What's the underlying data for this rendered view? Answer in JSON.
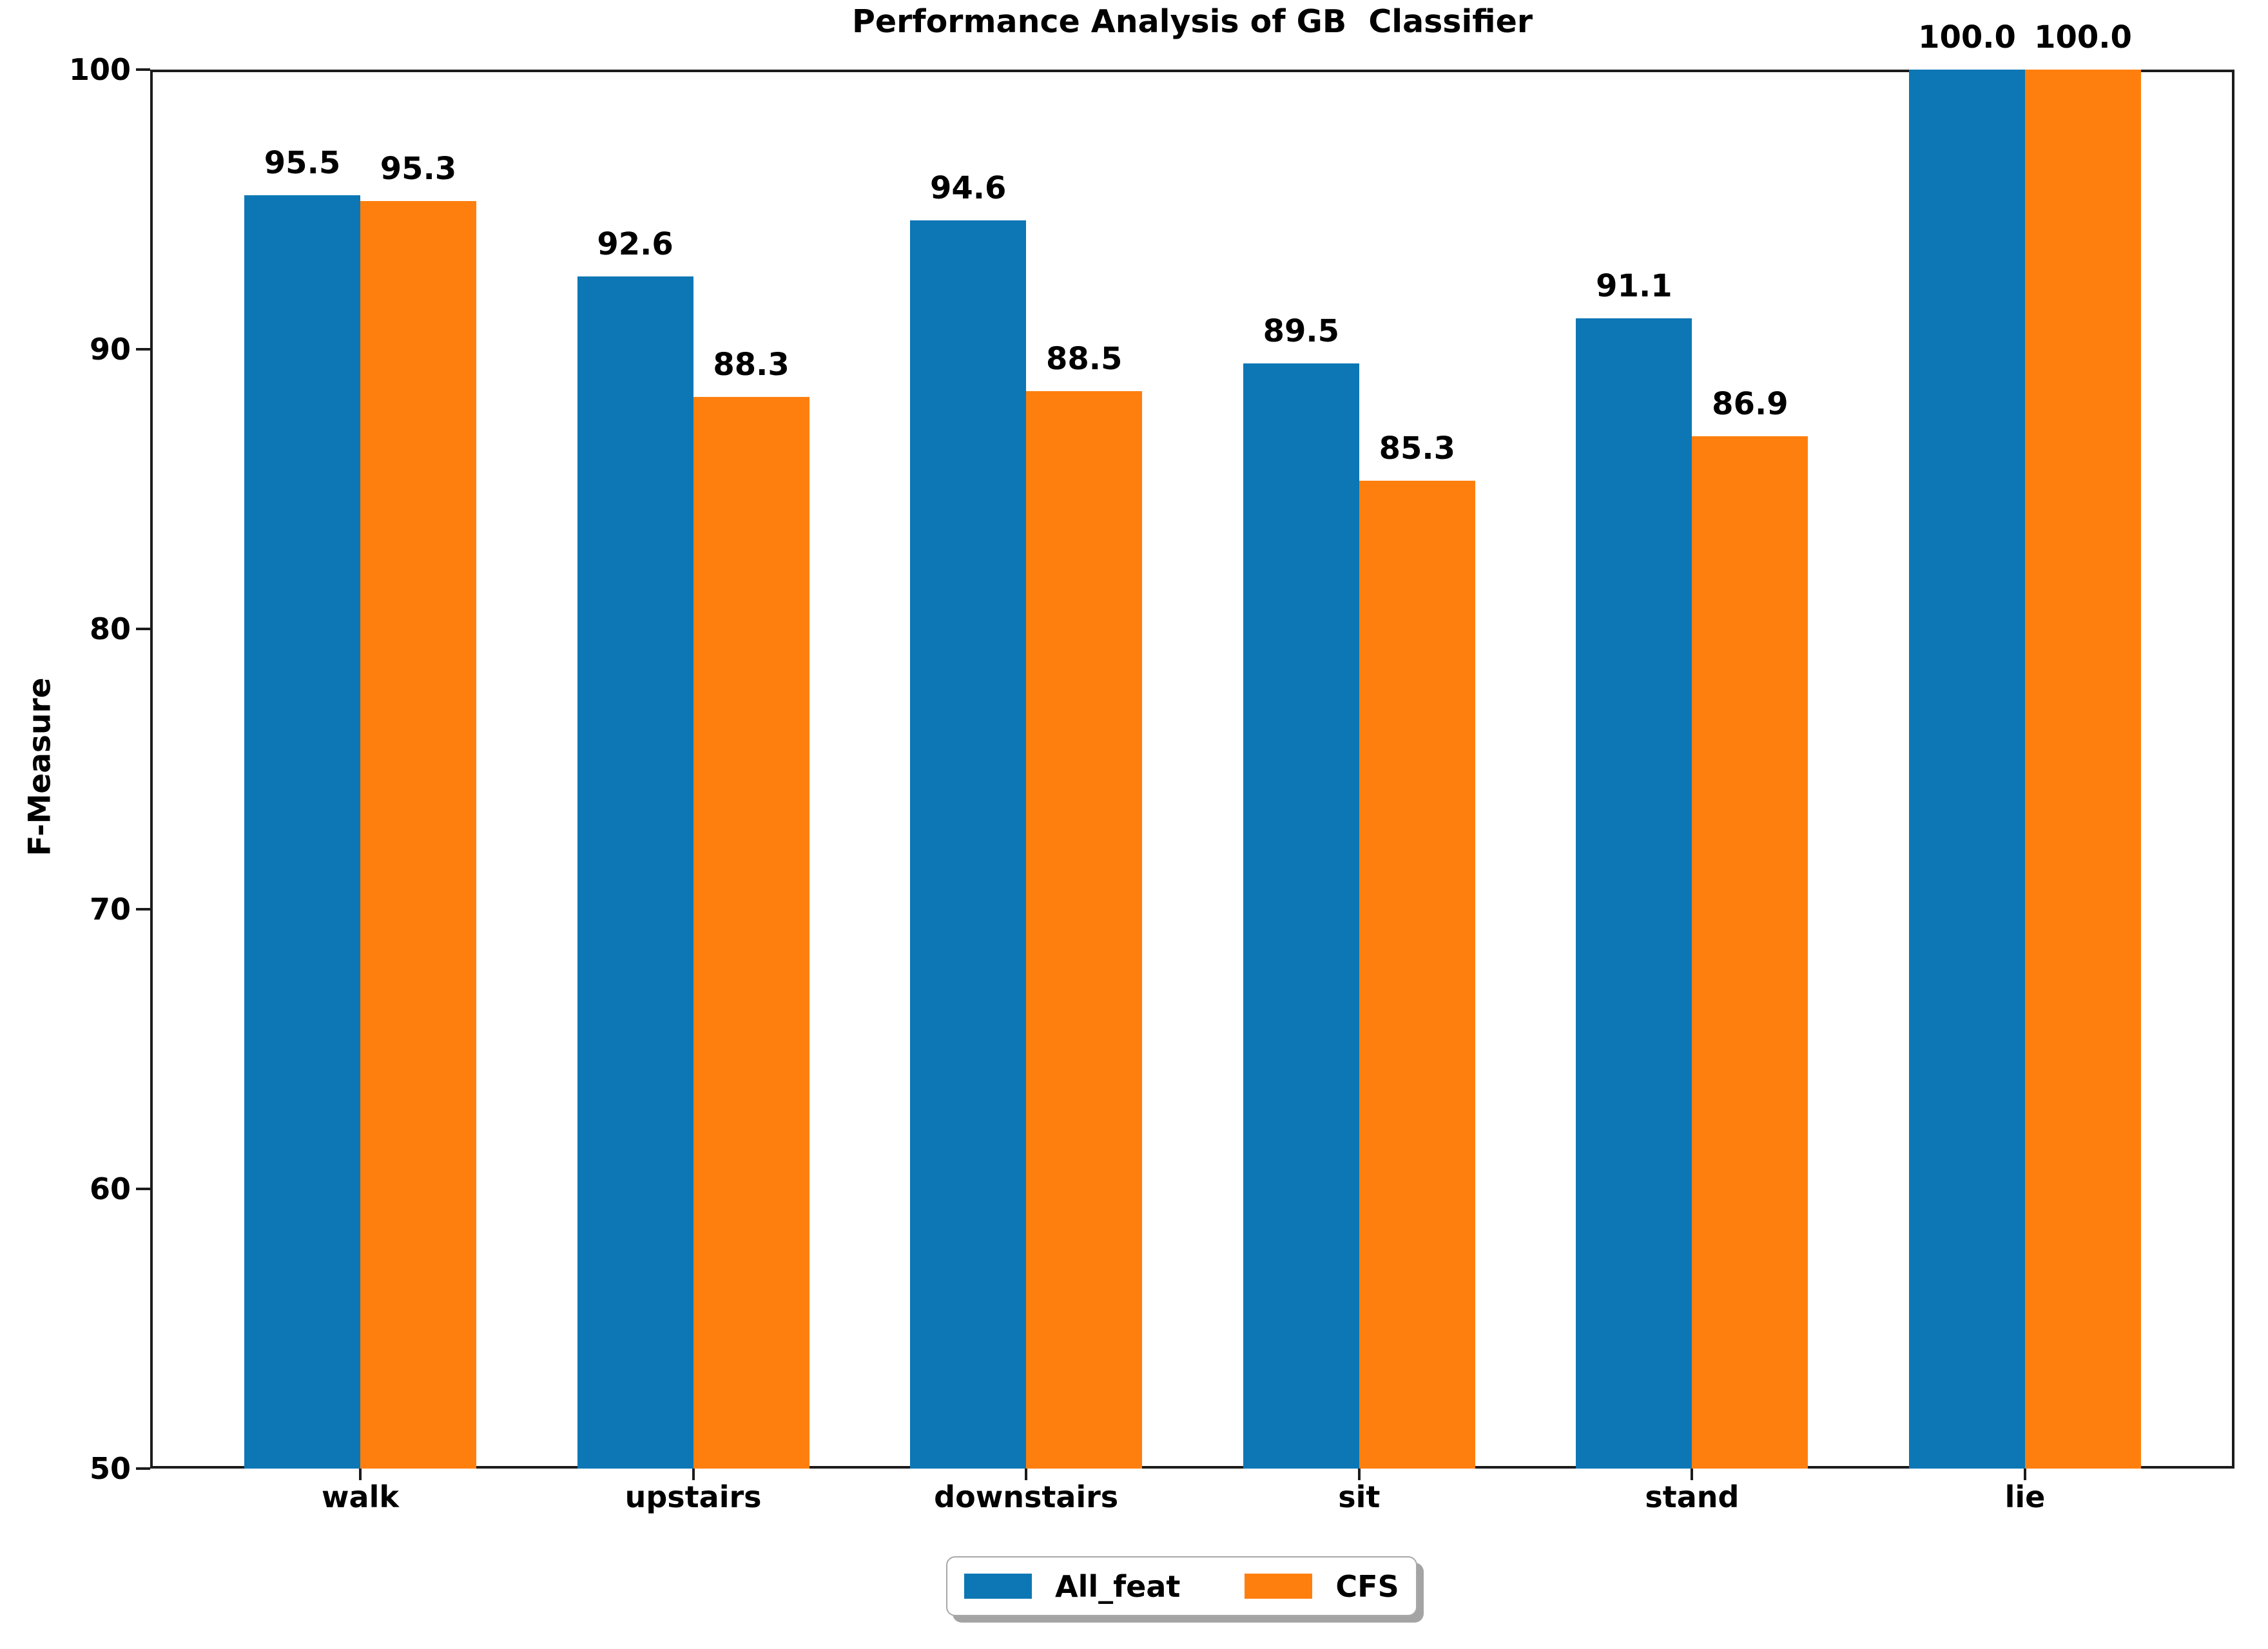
{
  "figure": {
    "background": "#ffffff",
    "spine_color": "#1c1c1c",
    "text_color": "#000000"
  },
  "chart_data": {
    "type": "bar",
    "title": "Performance Analysis of GB  Classifier",
    "xlabel": "",
    "ylabel": "F-Measure",
    "categories": [
      "walk",
      "upstairs",
      "downstairs",
      "sit",
      "stand",
      "lie"
    ],
    "series": [
      {
        "name": "All_feat",
        "color": "#0d77b5",
        "values": [
          95.5,
          92.6,
          94.6,
          89.5,
          91.1,
          100.0
        ]
      },
      {
        "name": "CFS",
        "color": "#ff7f0e",
        "values": [
          95.3,
          88.3,
          88.5,
          85.3,
          86.9,
          100.0
        ]
      }
    ],
    "value_labels": [
      "95.5",
      "95.3",
      "92.6",
      "88.3",
      "94.6",
      "88.5",
      "89.5",
      "85.3",
      "91.1",
      "86.9",
      "100.0",
      "100.0"
    ],
    "ylim": [
      50,
      100
    ],
    "yticks": [
      50,
      60,
      70,
      80,
      90,
      100
    ],
    "ytick_labels": [
      "50",
      "60",
      "70",
      "80",
      "90",
      "100"
    ],
    "grid": false,
    "legend_position": "lower center, outside axes",
    "legend_items": [
      {
        "label": "All_feat",
        "color": "#0d77b5"
      },
      {
        "label": "CFS",
        "color": "#ff7f0e"
      }
    ]
  }
}
